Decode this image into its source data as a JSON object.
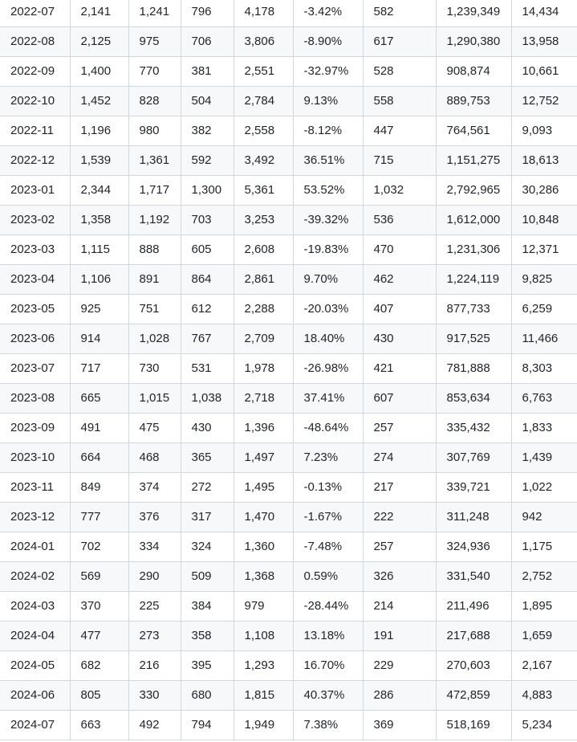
{
  "table": {
    "rows": [
      [
        "2022-07",
        "2,141",
        "1,241",
        "796",
        "4,178",
        "-3.42%",
        "582",
        "1,239,349",
        "14,434"
      ],
      [
        "2022-08",
        "2,125",
        "975",
        "706",
        "3,806",
        "-8.90%",
        "617",
        "1,290,380",
        "13,958"
      ],
      [
        "2022-09",
        "1,400",
        "770",
        "381",
        "2,551",
        "-32.97%",
        "528",
        "908,874",
        "10,661"
      ],
      [
        "2022-10",
        "1,452",
        "828",
        "504",
        "2,784",
        "9.13%",
        "558",
        "889,753",
        "12,752"
      ],
      [
        "2022-11",
        "1,196",
        "980",
        "382",
        "2,558",
        "-8.12%",
        "447",
        "764,561",
        "9,093"
      ],
      [
        "2022-12",
        "1,539",
        "1,361",
        "592",
        "3,492",
        "36.51%",
        "715",
        "1,151,275",
        "18,613"
      ],
      [
        "2023-01",
        "2,344",
        "1,717",
        "1,300",
        "5,361",
        "53.52%",
        "1,032",
        "2,792,965",
        "30,286"
      ],
      [
        "2023-02",
        "1,358",
        "1,192",
        "703",
        "3,253",
        "-39.32%",
        "536",
        "1,612,000",
        "10,848"
      ],
      [
        "2023-03",
        "1,115",
        "888",
        "605",
        "2,608",
        "-19.83%",
        "470",
        "1,231,306",
        "12,371"
      ],
      [
        "2023-04",
        "1,106",
        "891",
        "864",
        "2,861",
        "9.70%",
        "462",
        "1,224,119",
        "9,825"
      ],
      [
        "2023-05",
        "925",
        "751",
        "612",
        "2,288",
        "-20.03%",
        "407",
        "877,733",
        "6,259"
      ],
      [
        "2023-06",
        "914",
        "1,028",
        "767",
        "2,709",
        "18.40%",
        "430",
        "917,525",
        "11,466"
      ],
      [
        "2023-07",
        "717",
        "730",
        "531",
        "1,978",
        "-26.98%",
        "421",
        "781,888",
        "8,303"
      ],
      [
        "2023-08",
        "665",
        "1,015",
        "1,038",
        "2,718",
        "37.41%",
        "607",
        "853,634",
        "6,763"
      ],
      [
        "2023-09",
        "491",
        "475",
        "430",
        "1,396",
        "-48.64%",
        "257",
        "335,432",
        "1,833"
      ],
      [
        "2023-10",
        "664",
        "468",
        "365",
        "1,497",
        "7.23%",
        "274",
        "307,769",
        "1,439"
      ],
      [
        "2023-11",
        "849",
        "374",
        "272",
        "1,495",
        "-0.13%",
        "217",
        "339,721",
        "1,022"
      ],
      [
        "2023-12",
        "777",
        "376",
        "317",
        "1,470",
        "-1.67%",
        "222",
        "311,248",
        "942"
      ],
      [
        "2024-01",
        "702",
        "334",
        "324",
        "1,360",
        "-7.48%",
        "257",
        "324,936",
        "1,175"
      ],
      [
        "2024-02",
        "569",
        "290",
        "509",
        "1,368",
        "0.59%",
        "326",
        "331,540",
        "2,752"
      ],
      [
        "2024-03",
        "370",
        "225",
        "384",
        "979",
        "-28.44%",
        "214",
        "211,496",
        "1,895"
      ],
      [
        "2024-04",
        "477",
        "273",
        "358",
        "1,108",
        "13.18%",
        "191",
        "217,688",
        "1,659"
      ],
      [
        "2024-05",
        "682",
        "216",
        "395",
        "1,293",
        "16.70%",
        "229",
        "270,603",
        "2,167"
      ],
      [
        "2024-06",
        "805",
        "330",
        "680",
        "1,815",
        "40.37%",
        "286",
        "472,859",
        "4,883"
      ],
      [
        "2024-07",
        "663",
        "492",
        "794",
        "1,949",
        "7.38%",
        "369",
        "518,169",
        "5,234"
      ]
    ]
  }
}
